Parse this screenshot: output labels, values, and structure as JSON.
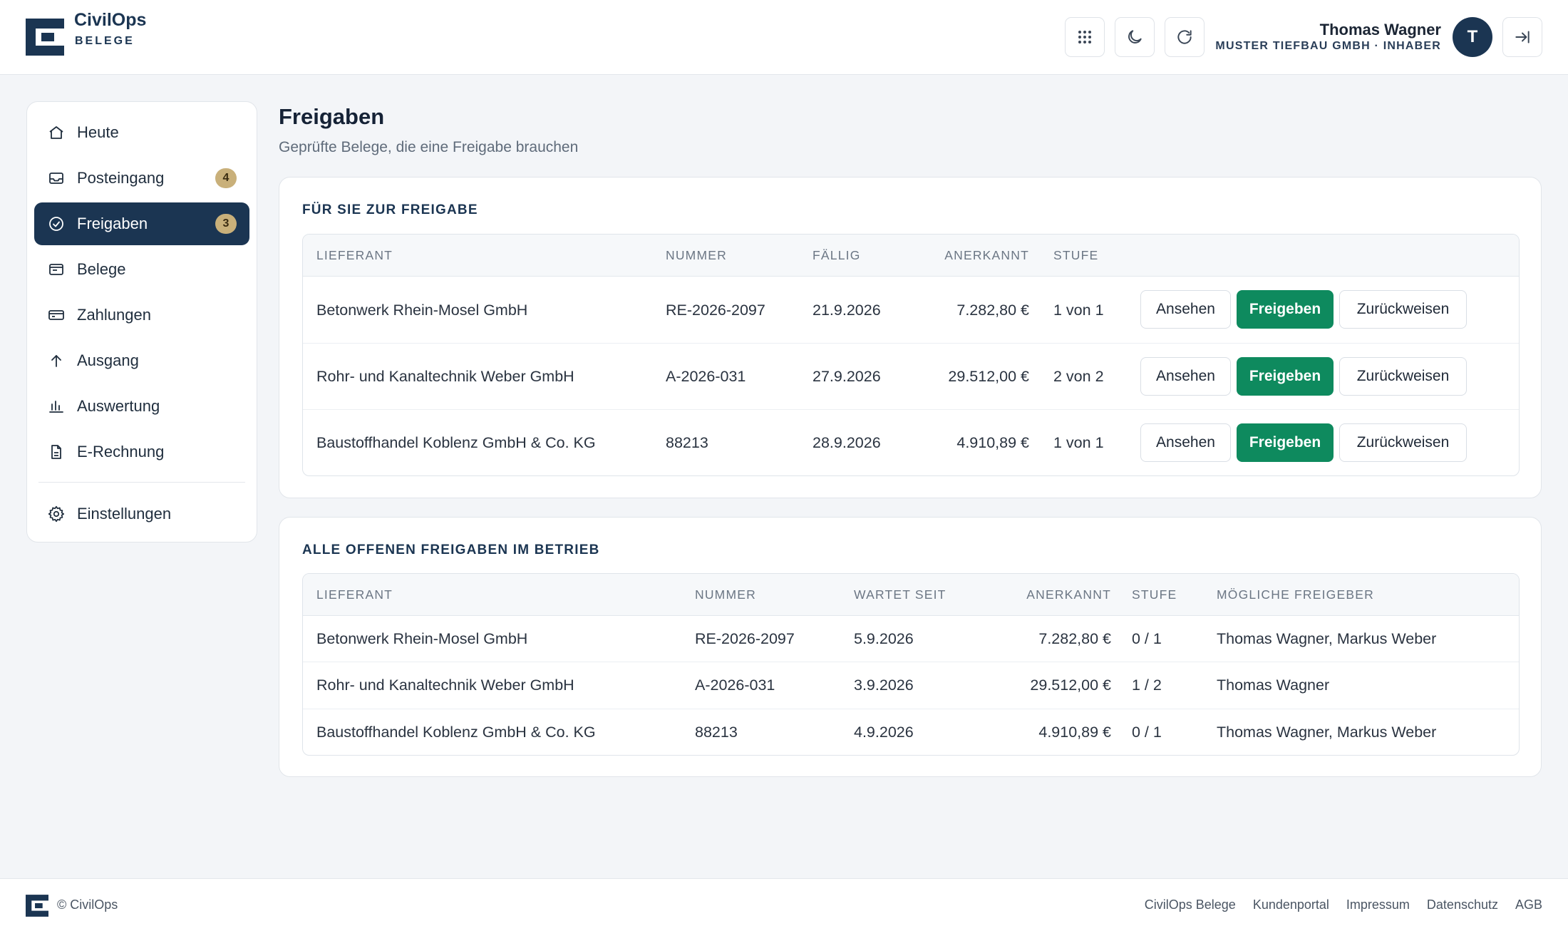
{
  "header": {
    "brand_name": "CivilOps",
    "brand_sub": "BELEGE",
    "user_name": "Thomas Wagner",
    "user_org": "MUSTER TIEFBAU GMBH · INHABER",
    "avatar_initial": "T",
    "icons": [
      "apps-grid-icon",
      "moon-icon",
      "refresh-icon",
      "logout-icon"
    ]
  },
  "sidebar": {
    "items": [
      {
        "label": "Heute",
        "icon": "home-icon"
      },
      {
        "label": "Posteingang",
        "icon": "inbox-icon",
        "badge": "4"
      },
      {
        "label": "Freigaben",
        "icon": "check-circle-icon",
        "badge": "3",
        "active": true
      },
      {
        "label": "Belege",
        "icon": "document-icon"
      },
      {
        "label": "Zahlungen",
        "icon": "credit-card-icon"
      },
      {
        "label": "Ausgang",
        "icon": "arrow-up-icon"
      },
      {
        "label": "Auswertung",
        "icon": "bar-chart-icon"
      },
      {
        "label": "E-Rechnung",
        "icon": "file-icon"
      },
      {
        "label": "Einstellungen",
        "icon": "gear-icon"
      }
    ]
  },
  "main": {
    "title": "Freigaben",
    "subtitle": "Geprüfte Belege, die eine Freigabe brauchen"
  },
  "pending": {
    "title": "FÜR SIE ZUR FREIGABE",
    "headers": [
      "LIEFERANT",
      "NUMMER",
      "FÄLLIG",
      "ANERKANNT",
      "STUFE"
    ],
    "actions": {
      "view": "Ansehen",
      "approve": "Freigeben",
      "reject": "Zurückweisen"
    },
    "rows": [
      {
        "supplier": "Betonwerk Rhein-Mosel GmbH",
        "number": "RE-2026-2097",
        "due": "21.9.2026",
        "amount": "7.282,80 €",
        "stage": "1 von 1"
      },
      {
        "supplier": "Rohr- und Kanaltechnik Weber GmbH",
        "number": "A-2026-031",
        "due": "27.9.2026",
        "amount": "29.512,00 €",
        "stage": "2 von 2"
      },
      {
        "supplier": "Baustoffhandel Koblenz GmbH & Co. KG",
        "number": "88213",
        "due": "28.9.2026",
        "amount": "4.910,89 €",
        "stage": "1 von 1"
      }
    ]
  },
  "all_open": {
    "title": "ALLE OFFENEN FREIGABEN IM BETRIEB",
    "headers": [
      "LIEFERANT",
      "NUMMER",
      "WARTET SEIT",
      "ANERKANNT",
      "STUFE",
      "MÖGLICHE FREIGEBER"
    ],
    "rows": [
      {
        "supplier": "Betonwerk Rhein-Mosel GmbH",
        "number": "RE-2026-2097",
        "since": "5.9.2026",
        "amount": "7.282,80 €",
        "stage": "0 / 1",
        "approvers": "Thomas Wagner, Markus Weber"
      },
      {
        "supplier": "Rohr- und Kanaltechnik Weber GmbH",
        "number": "A-2026-031",
        "since": "3.9.2026",
        "amount": "29.512,00 €",
        "stage": "1 / 2",
        "approvers": "Thomas Wagner"
      },
      {
        "supplier": "Baustoffhandel Koblenz GmbH & Co. KG",
        "number": "88213",
        "since": "4.9.2026",
        "amount": "4.910,89 €",
        "stage": "0 / 1",
        "approvers": "Thomas Wagner, Markus Weber"
      }
    ]
  },
  "footer": {
    "copyright": "© CivilOps",
    "links": [
      "CivilOps Belege",
      "Kundenportal",
      "Impressum",
      "Datenschutz",
      "AGB"
    ]
  },
  "colors": {
    "navy": "#1b3552",
    "green": "#0e8a5e",
    "badge": "#c9b07a",
    "background": "#f3f5f8"
  }
}
